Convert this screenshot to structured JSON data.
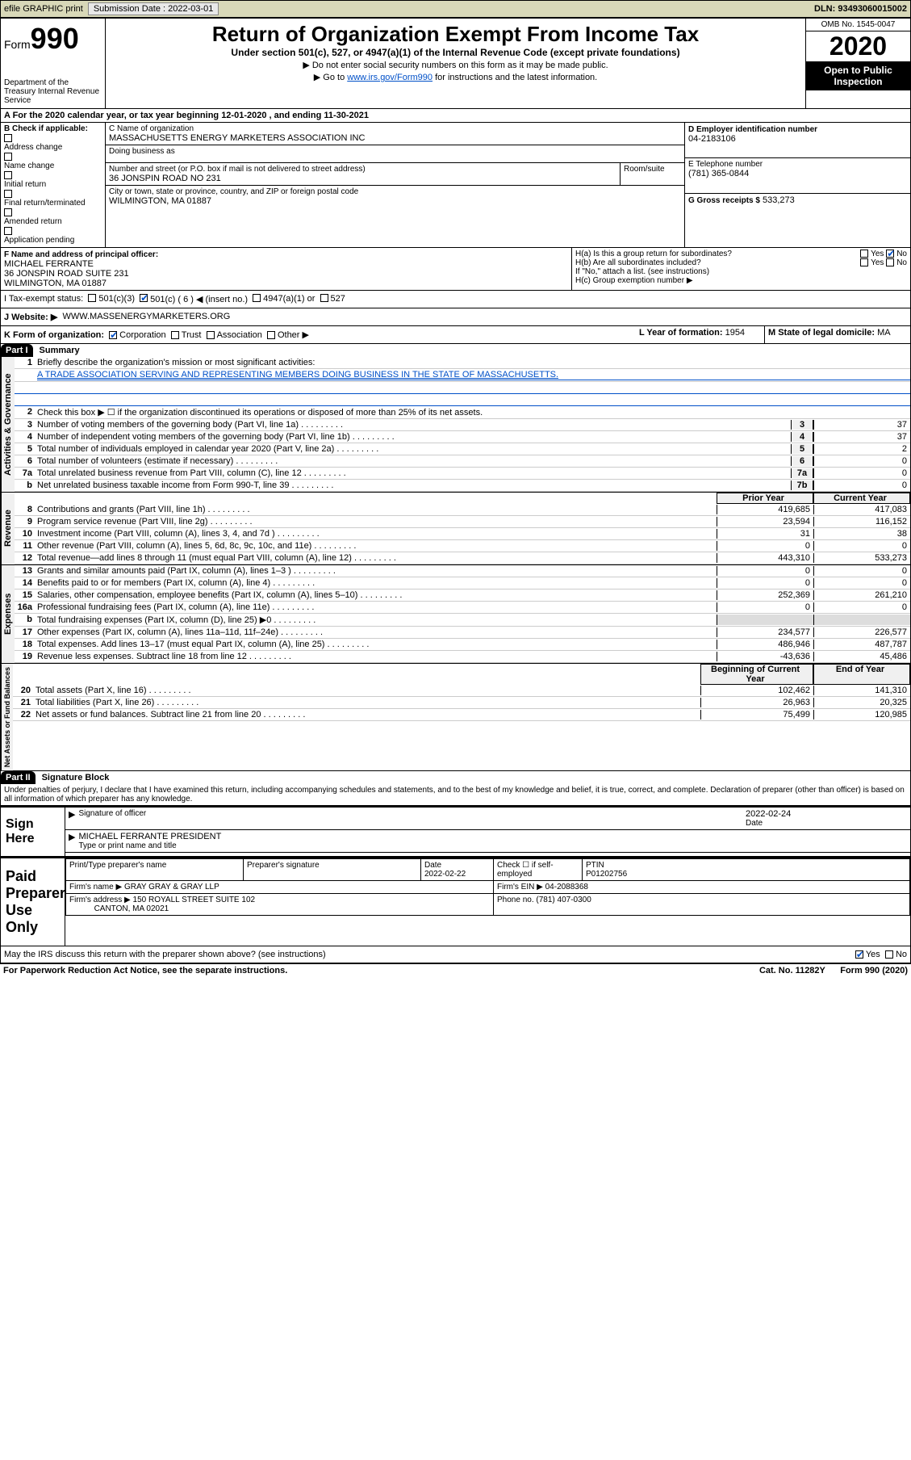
{
  "topbar": {
    "efile": "efile GRAPHIC print",
    "submission_label": "Submission Date : 2022-03-01",
    "dln": "DLN: 93493060015002"
  },
  "header": {
    "form_label": "Form",
    "form_num": "990",
    "dept": "Department of the Treasury\nInternal Revenue Service",
    "title": "Return of Organization Exempt From Income Tax",
    "sub": "Under section 501(c), 527, or 4947(a)(1) of the Internal Revenue Code (except private foundations)",
    "note1": "▶ Do not enter social security numbers on this form as it may be made public.",
    "note2_pre": "▶ Go to ",
    "note2_link": "www.irs.gov/Form990",
    "note2_post": " for instructions and the latest information.",
    "omb": "OMB No. 1545-0047",
    "year": "2020",
    "inspect": "Open to Public Inspection"
  },
  "section_a": "A For the 2020 calendar year, or tax year beginning 12-01-2020    , and ending 11-30-2021",
  "b": {
    "label": "B Check if applicable:",
    "items": [
      "Address change",
      "Name change",
      "Initial return",
      "Final return/terminated",
      "Amended return",
      "Application pending"
    ]
  },
  "c": {
    "name_label": "C Name of organization",
    "name": "MASSACHUSETTS ENERGY MARKETERS ASSOCIATION INC",
    "dba_label": "Doing business as",
    "addr_label": "Number and street (or P.O. box if mail is not delivered to street address)",
    "room_label": "Room/suite",
    "addr": "36 JONSPIN ROAD NO 231",
    "city_label": "City or town, state or province, country, and ZIP or foreign postal code",
    "city": "WILMINGTON, MA  01887"
  },
  "d": {
    "label": "D Employer identification number",
    "value": "04-2183106"
  },
  "e": {
    "label": "E Telephone number",
    "value": "(781) 365-0844"
  },
  "g": {
    "label": "G Gross receipts $",
    "value": "533,273"
  },
  "f": {
    "label": "F Name and address of principal officer:",
    "name": "MICHAEL FERRANTE",
    "addr1": "36 JONSPIN ROAD SUITE 231",
    "addr2": "WILMINGTON, MA  01887"
  },
  "h": {
    "a": "H(a)  Is this a group return for subordinates?",
    "b": "H(b)  Are all subordinates included?",
    "note": "If \"No,\" attach a list. (see instructions)",
    "c": "H(c)  Group exemption number ▶",
    "yes": "Yes",
    "no": "No"
  },
  "i": {
    "label": "I   Tax-exempt status:",
    "opts": [
      "501(c)(3)",
      "501(c) ( 6 ) ◀ (insert no.)",
      "4947(a)(1) or",
      "527"
    ]
  },
  "j": {
    "label": "J   Website: ▶",
    "value": "WWW.MASSENERGYMARKETERS.ORG"
  },
  "k": {
    "label": "K Form of organization:",
    "opts": [
      "Corporation",
      "Trust",
      "Association",
      "Other ▶"
    ]
  },
  "l": {
    "label": "L Year of formation:",
    "value": "1954"
  },
  "m": {
    "label": "M State of legal domicile:",
    "value": "MA"
  },
  "part1": {
    "hdr": "Part I",
    "title": "Summary",
    "vlabels": [
      "Activities & Governance",
      "Revenue",
      "Expenses",
      "Net Assets or Fund Balances"
    ],
    "q1": "Briefly describe the organization's mission or most significant activities:",
    "mission": "A TRADE ASSOCIATION SERVING AND REPRESENTING MEMBERS DOING BUSINESS IN THE STATE OF MASSACHUSETTS.",
    "q2": "Check this box ▶ ☐  if the organization discontinued its operations or disposed of more than 25% of its net assets.",
    "lines_gov": [
      {
        "n": "3",
        "d": "Number of voting members of the governing body (Part VI, line 1a)",
        "b": "3",
        "v": "37"
      },
      {
        "n": "4",
        "d": "Number of independent voting members of the governing body (Part VI, line 1b)",
        "b": "4",
        "v": "37"
      },
      {
        "n": "5",
        "d": "Total number of individuals employed in calendar year 2020 (Part V, line 2a)",
        "b": "5",
        "v": "2"
      },
      {
        "n": "6",
        "d": "Total number of volunteers (estimate if necessary)",
        "b": "6",
        "v": "0"
      },
      {
        "n": "7a",
        "d": "Total unrelated business revenue from Part VIII, column (C), line 12",
        "b": "7a",
        "v": "0"
      },
      {
        "n": "b",
        "d": "Net unrelated business taxable income from Form 990-T, line 39",
        "b": "7b",
        "v": "0"
      }
    ],
    "col_prior": "Prior Year",
    "col_current": "Current Year",
    "col_begin": "Beginning of Current Year",
    "col_end": "End of Year",
    "rev": [
      {
        "n": "8",
        "d": "Contributions and grants (Part VIII, line 1h)",
        "p": "419,685",
        "c": "417,083"
      },
      {
        "n": "9",
        "d": "Program service revenue (Part VIII, line 2g)",
        "p": "23,594",
        "c": "116,152"
      },
      {
        "n": "10",
        "d": "Investment income (Part VIII, column (A), lines 3, 4, and 7d )",
        "p": "31",
        "c": "38"
      },
      {
        "n": "11",
        "d": "Other revenue (Part VIII, column (A), lines 5, 6d, 8c, 9c, 10c, and 11e)",
        "p": "0",
        "c": "0"
      },
      {
        "n": "12",
        "d": "Total revenue—add lines 8 through 11 (must equal Part VIII, column (A), line 12)",
        "p": "443,310",
        "c": "533,273"
      }
    ],
    "exp": [
      {
        "n": "13",
        "d": "Grants and similar amounts paid (Part IX, column (A), lines 1–3 )",
        "p": "0",
        "c": "0"
      },
      {
        "n": "14",
        "d": "Benefits paid to or for members (Part IX, column (A), line 4)",
        "p": "0",
        "c": "0"
      },
      {
        "n": "15",
        "d": "Salaries, other compensation, employee benefits (Part IX, column (A), lines 5–10)",
        "p": "252,369",
        "c": "261,210"
      },
      {
        "n": "16a",
        "d": "Professional fundraising fees (Part IX, column (A), line 11e)",
        "p": "0",
        "c": "0"
      },
      {
        "n": "b",
        "d": "Total fundraising expenses (Part IX, column (D), line 25) ▶0",
        "p": "",
        "c": ""
      },
      {
        "n": "17",
        "d": "Other expenses (Part IX, column (A), lines 11a–11d, 11f–24e)",
        "p": "234,577",
        "c": "226,577"
      },
      {
        "n": "18",
        "d": "Total expenses. Add lines 13–17 (must equal Part IX, column (A), line 25)",
        "p": "486,946",
        "c": "487,787"
      },
      {
        "n": "19",
        "d": "Revenue less expenses. Subtract line 18 from line 12",
        "p": "-43,636",
        "c": "45,486"
      }
    ],
    "net": [
      {
        "n": "20",
        "d": "Total assets (Part X, line 16)",
        "p": "102,462",
        "c": "141,310"
      },
      {
        "n": "21",
        "d": "Total liabilities (Part X, line 26)",
        "p": "26,963",
        "c": "20,325"
      },
      {
        "n": "22",
        "d": "Net assets or fund balances. Subtract line 21 from line 20",
        "p": "75,499",
        "c": "120,985"
      }
    ]
  },
  "part2": {
    "hdr": "Part II",
    "title": "Signature Block",
    "penalty": "Under penalties of perjury, I declare that I have examined this return, including accompanying schedules and statements, and to the best of my knowledge and belief, it is true, correct, and complete. Declaration of preparer (other than officer) is based on all information of which preparer has any knowledge.",
    "sign_here": "Sign Here",
    "sig_officer": "Signature of officer",
    "sig_date": "2022-02-24",
    "date_label": "Date",
    "officer": "MICHAEL FERRANTE  PRESIDENT",
    "type_name": "Type or print name and title",
    "paid": "Paid Preparer Use Only",
    "prep_name_label": "Print/Type preparer's name",
    "prep_sig_label": "Preparer's signature",
    "prep_date_label": "Date",
    "prep_date": "2022-02-22",
    "self_emp": "Check ☐ if self-employed",
    "ptin_label": "PTIN",
    "ptin": "P01202756",
    "firm_name_label": "Firm's name    ▶",
    "firm_name": "GRAY GRAY & GRAY LLP",
    "firm_ein_label": "Firm's EIN ▶",
    "firm_ein": "04-2088368",
    "firm_addr_label": "Firm's address ▶",
    "firm_addr1": "150 ROYALL STREET SUITE 102",
    "firm_addr2": "CANTON, MA  02021",
    "phone_label": "Phone no.",
    "phone": "(781) 407-0300",
    "discuss": "May the IRS discuss this return with the preparer shown above? (see instructions)",
    "yes": "Yes",
    "no": "No"
  },
  "footer": {
    "left": "For Paperwork Reduction Act Notice, see the separate instructions.",
    "mid": "Cat. No. 11282Y",
    "right": "Form 990 (2020)"
  }
}
